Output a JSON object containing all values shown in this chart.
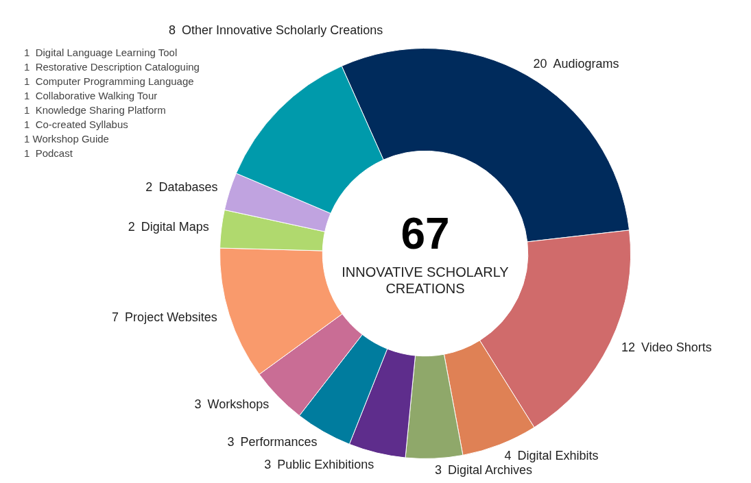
{
  "chart_data": {
    "type": "donut",
    "title": "67",
    "subtitle": "INNOVATIVE SCHOLARLY CREATIONS",
    "categories": [
      "Audiograms",
      "Video Shorts",
      "Digital Exhibits",
      "Digital Archives",
      "Public Exhibitions",
      "Performances",
      "Workshops",
      "Project Websites",
      "Digital Maps",
      "Databases",
      "Other Innovative Scholarly Creations"
    ],
    "values": [
      20,
      12,
      4,
      3,
      3,
      3,
      3,
      7,
      2,
      2,
      8
    ],
    "colors": [
      "#002b5c",
      "#d06b6b",
      "#df8155",
      "#8fa86a",
      "#5e2d8c",
      "#007c9e",
      "#c96d95",
      "#f99a6c",
      "#b0d96e",
      "#c0a3e0",
      "#009aab"
    ],
    "data_labels": true,
    "annotations": [
      "1  Digital Language Learning Tool",
      "1  Restorative Description Cataloguing",
      "1  Computer Programming Language",
      "1  Collaborative Walking Tour",
      "1  Knowledge Sharing Platform",
      "1  Co-created Syllabus",
      "1 Workshop Guide",
      "1  Podcast"
    ],
    "legend": false
  }
}
